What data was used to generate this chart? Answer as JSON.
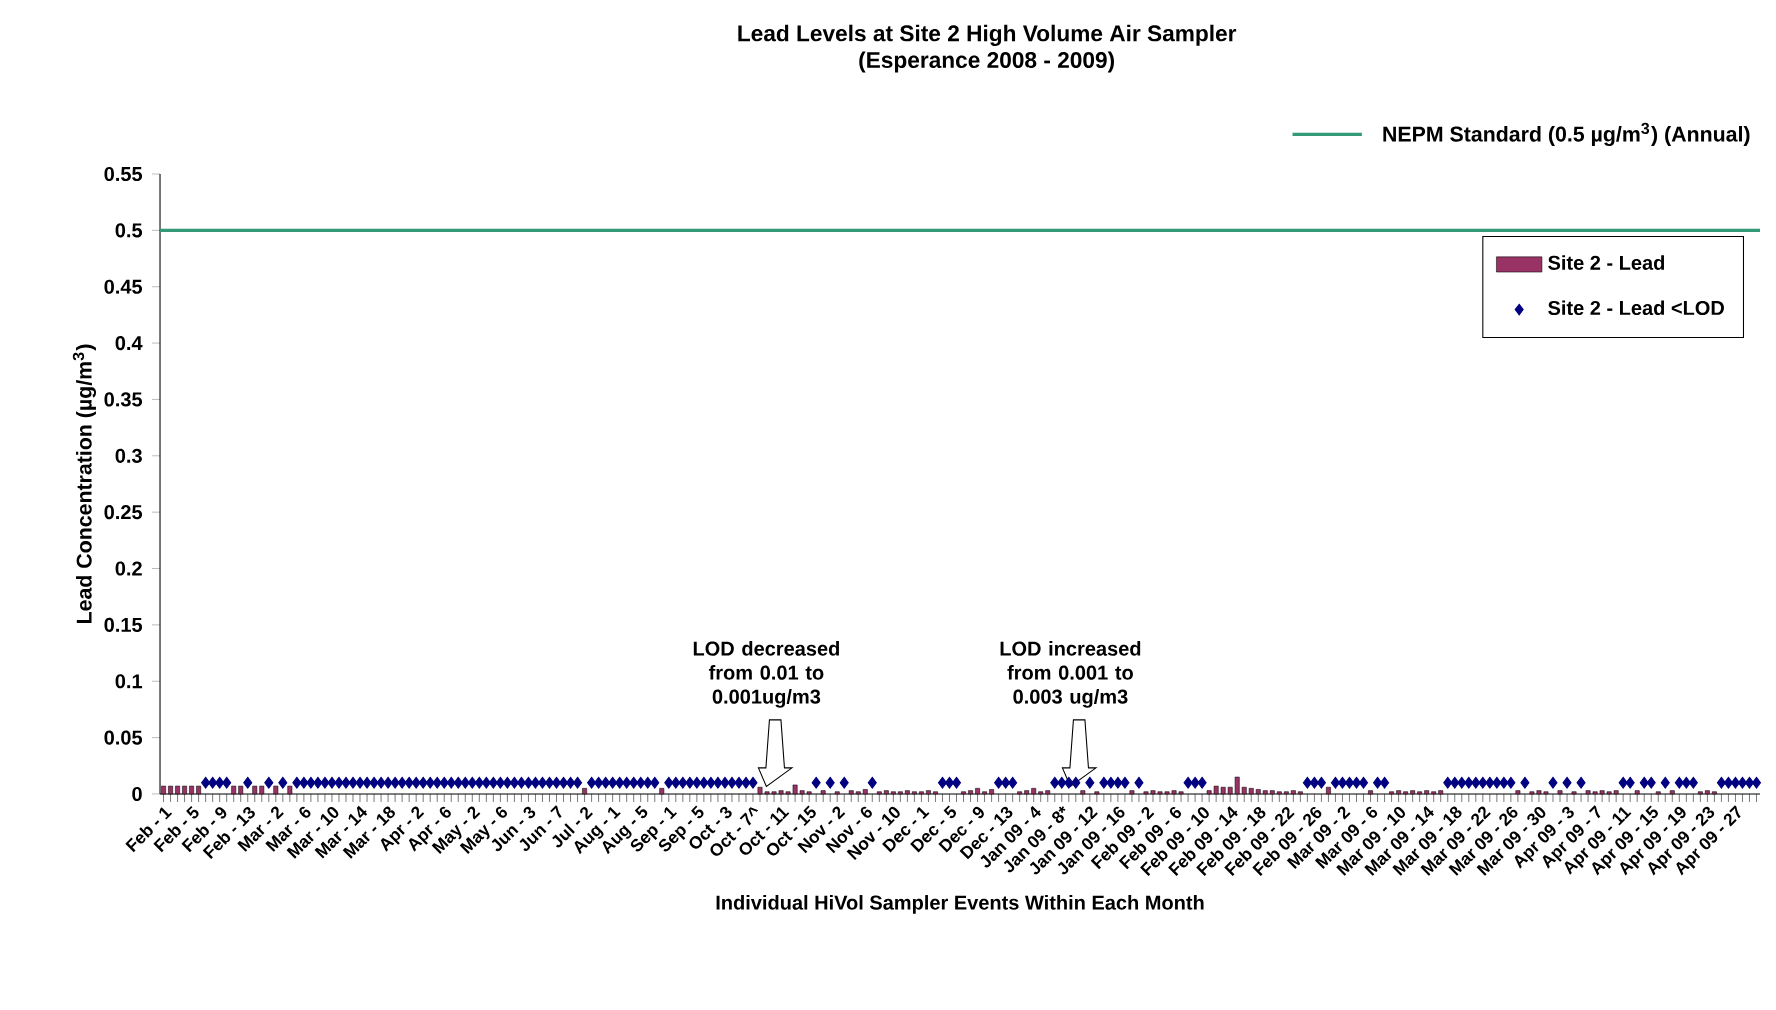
{
  "chart_data": {
    "type": "bar",
    "title": "Lead Levels at Site 2 High Volume Air Sampler",
    "subtitle": "(Esperance 2008 - 2009)",
    "xlabel": "Individual HiVol Sampler Events Within Each Month",
    "ylabel": "Lead Concentration (µg/m$^{3}$)",
    "categories": [
      "Feb - 1",
      null,
      null,
      null,
      "Feb - 5",
      null,
      null,
      null,
      "Feb - 9",
      null,
      null,
      null,
      "Feb - 13",
      null,
      null,
      null,
      "Mar - 2",
      null,
      null,
      null,
      "Mar - 6",
      null,
      null,
      null,
      "Mar - 10",
      null,
      null,
      null,
      "Mar - 14",
      null,
      null,
      null,
      "Mar - 18",
      null,
      null,
      null,
      "Apr - 2",
      null,
      null,
      null,
      "Apr - 6",
      null,
      null,
      null,
      "May - 2",
      null,
      null,
      null,
      "May - 6",
      null,
      null,
      null,
      "Jun - 3",
      null,
      null,
      null,
      "Jun - 7",
      null,
      null,
      null,
      "Jul - 2",
      null,
      null,
      null,
      "Aug - 1",
      null,
      null,
      null,
      "Aug - 5",
      null,
      null,
      null,
      "Sep - 1",
      null,
      null,
      null,
      "Sep - 5",
      null,
      null,
      null,
      "Oct - 3",
      null,
      null,
      null,
      "Oct - 7^",
      null,
      null,
      null,
      "Oct - 11",
      null,
      null,
      null,
      "Oct - 15",
      null,
      null,
      null,
      "Nov - 2",
      null,
      null,
      null,
      "Nov - 6",
      null,
      null,
      null,
      "Nov - 10",
      null,
      null,
      null,
      "Dec - 1",
      null,
      null,
      null,
      "Dec - 5",
      null,
      null,
      null,
      "Dec - 9",
      null,
      null,
      null,
      "Dec - 13",
      null,
      null,
      null,
      "Jan 09 - 4",
      null,
      null,
      null,
      "Jan 09 - 8*",
      null,
      null,
      null,
      "Jan 09 - 12",
      null,
      null,
      null,
      "Jan 09 - 16",
      null,
      null,
      null,
      "Feb 09 - 2",
      null,
      null,
      null,
      "Feb 09 - 6",
      null,
      null,
      null,
      "Feb 09 - 10",
      null,
      null,
      null,
      "Feb 09 - 14",
      null,
      null,
      null,
      "Feb 09 - 18",
      null,
      null,
      null,
      "Feb 09 - 22",
      null,
      null,
      null,
      "Feb 09 - 26",
      null,
      null,
      null,
      "Mar 09 - 2",
      null,
      null,
      null,
      "Mar 09 - 6",
      null,
      null,
      null,
      "Mar 09 - 10",
      null,
      null,
      null,
      "Mar 09 - 14",
      null,
      null,
      null,
      "Mar 09 - 18",
      null,
      null,
      null,
      "Mar 09 - 22",
      null,
      null,
      null,
      "Mar 09 - 26",
      null,
      null,
      null,
      "Mar 09 - 30",
      null,
      null,
      null,
      "Apr 09 - 3",
      null,
      null,
      null,
      "Apr 09 - 7",
      null,
      null,
      null,
      "Apr 09 - 11",
      null,
      null,
      null,
      "Apr 09 - 15",
      null,
      null,
      null,
      "Apr 09 - 19",
      null,
      null,
      null,
      "Apr 09 - 23",
      null,
      null,
      null,
      "Apr 09 - 27",
      null,
      null,
      null
    ],
    "series": [
      {
        "name": "Site 2 - Lead",
        "color": "#993366",
        "values": [
          0.007,
          0.007,
          0.007,
          0.007,
          0.007,
          0.007,
          null,
          null,
          null,
          null,
          0.007,
          0.007,
          null,
          0.007,
          0.007,
          null,
          0.007,
          null,
          0.007,
          null,
          null,
          null,
          null,
          null,
          null,
          null,
          null,
          null,
          null,
          null,
          null,
          null,
          null,
          null,
          null,
          null,
          null,
          null,
          null,
          null,
          null,
          null,
          null,
          null,
          null,
          null,
          null,
          null,
          null,
          null,
          null,
          null,
          null,
          null,
          null,
          null,
          null,
          null,
          null,
          null,
          0.005,
          null,
          null,
          null,
          null,
          null,
          null,
          null,
          null,
          null,
          null,
          0.005,
          null,
          null,
          null,
          null,
          null,
          null,
          null,
          null,
          null,
          null,
          null,
          null,
          null,
          0.006,
          0.002,
          0.002,
          0.003,
          0.002,
          0.008,
          0.003,
          0.002,
          null,
          0.003,
          null,
          0.002,
          null,
          0.003,
          0.002,
          0.004,
          null,
          0.002,
          0.003,
          0.002,
          0.002,
          0.003,
          0.002,
          0.002,
          0.003,
          0.002,
          null,
          null,
          null,
          0.002,
          0.003,
          0.005,
          0.002,
          0.004,
          null,
          null,
          null,
          0.002,
          0.003,
          0.005,
          0.002,
          0.003,
          null,
          null,
          null,
          null,
          0.003,
          null,
          0.002,
          null,
          null,
          null,
          null,
          0.003,
          null,
          0.002,
          0.003,
          0.002,
          0.002,
          0.003,
          0.002,
          null,
          null,
          null,
          0.003,
          0.007,
          0.006,
          0.006,
          0.015,
          0.006,
          0.005,
          0.004,
          0.003,
          0.003,
          0.002,
          0.002,
          0.003,
          0.002,
          null,
          null,
          null,
          0.006,
          null,
          null,
          null,
          null,
          null,
          0.003,
          null,
          null,
          0.002,
          0.003,
          0.002,
          0.003,
          0.002,
          0.003,
          0.002,
          0.003,
          null,
          null,
          null,
          null,
          null,
          null,
          null,
          null,
          null,
          null,
          0.003,
          null,
          0.002,
          0.003,
          0.002,
          null,
          0.003,
          null,
          0.002,
          null,
          0.003,
          0.002,
          0.003,
          0.002,
          0.003,
          null,
          null,
          0.003,
          null,
          null,
          0.002,
          null,
          0.003,
          null,
          null,
          null,
          0.002,
          0.003,
          0.002,
          null,
          null,
          null,
          null,
          null,
          null
        ]
      },
      {
        "name": "Site 2 - Lead <LOD",
        "type": "scatter",
        "marker": "diamond",
        "color": "#000080",
        "values": [
          null,
          null,
          null,
          null,
          null,
          null,
          0.01,
          0.01,
          0.01,
          0.01,
          null,
          null,
          0.01,
          null,
          null,
          0.01,
          null,
          0.01,
          null,
          0.01,
          0.01,
          0.01,
          0.01,
          0.01,
          0.01,
          0.01,
          0.01,
          0.01,
          0.01,
          0.01,
          0.01,
          0.01,
          0.01,
          0.01,
          0.01,
          0.01,
          0.01,
          0.01,
          0.01,
          0.01,
          0.01,
          0.01,
          0.01,
          0.01,
          0.01,
          0.01,
          0.01,
          0.01,
          0.01,
          0.01,
          0.01,
          0.01,
          0.01,
          0.01,
          0.01,
          0.01,
          0.01,
          0.01,
          0.01,
          0.01,
          null,
          0.01,
          0.01,
          0.01,
          0.01,
          0.01,
          0.01,
          0.01,
          0.01,
          0.01,
          0.01,
          null,
          0.01,
          0.01,
          0.01,
          0.01,
          0.01,
          0.01,
          0.01,
          0.01,
          0.01,
          0.01,
          0.01,
          0.01,
          0.01,
          null,
          null,
          null,
          null,
          null,
          null,
          null,
          null,
          0.01,
          null,
          0.01,
          null,
          0.01,
          null,
          null,
          null,
          0.01,
          null,
          null,
          null,
          null,
          null,
          null,
          null,
          null,
          null,
          0.01,
          0.01,
          0.01,
          null,
          null,
          null,
          null,
          null,
          0.01,
          0.01,
          0.01,
          null,
          null,
          null,
          null,
          null,
          0.01,
          0.01,
          0.01,
          0.01,
          null,
          0.01,
          null,
          0.01,
          0.01,
          0.01,
          0.01,
          null,
          0.01,
          null,
          null,
          null,
          null,
          null,
          null,
          0.01,
          0.01,
          0.01,
          null,
          null,
          null,
          null,
          null,
          null,
          null,
          null,
          null,
          null,
          null,
          null,
          null,
          null,
          0.01,
          0.01,
          0.01,
          null,
          0.01,
          0.01,
          0.01,
          0.01,
          0.01,
          null,
          0.01,
          0.01,
          null,
          null,
          null,
          null,
          null,
          null,
          null,
          null,
          0.01,
          0.01,
          0.01,
          0.01,
          0.01,
          0.01,
          0.01,
          0.01,
          0.01,
          0.01,
          null,
          0.01,
          null,
          null,
          null,
          0.01,
          null,
          0.01,
          null,
          0.01,
          null,
          null,
          null,
          null,
          null,
          0.01,
          0.01,
          null,
          0.01,
          0.01,
          null,
          0.01,
          null,
          0.01,
          0.01,
          0.01,
          null,
          null,
          null,
          0.01,
          0.01,
          0.01,
          0.01,
          0.01,
          0.01
        ]
      }
    ],
    "ylim": [
      0,
      0.55
    ],
    "yticks": [
      0,
      0.05,
      0.1,
      0.15,
      0.2,
      0.25,
      0.3,
      0.35,
      0.4,
      0.45,
      0.5,
      0.55
    ],
    "ref_lines": [
      {
        "axis": "y",
        "value": 0.5,
        "label": "NEPM Standard (0.5 µg/m$^{3}$) (Annual)",
        "color": "#339977"
      }
    ],
    "annotations": [
      "LOD decreased from 0.01 to 0.001ug/m3",
      "LOD increased from 0.001 to 0.003 ug/m3"
    ],
    "legend": "top right",
    "grid": false
  }
}
